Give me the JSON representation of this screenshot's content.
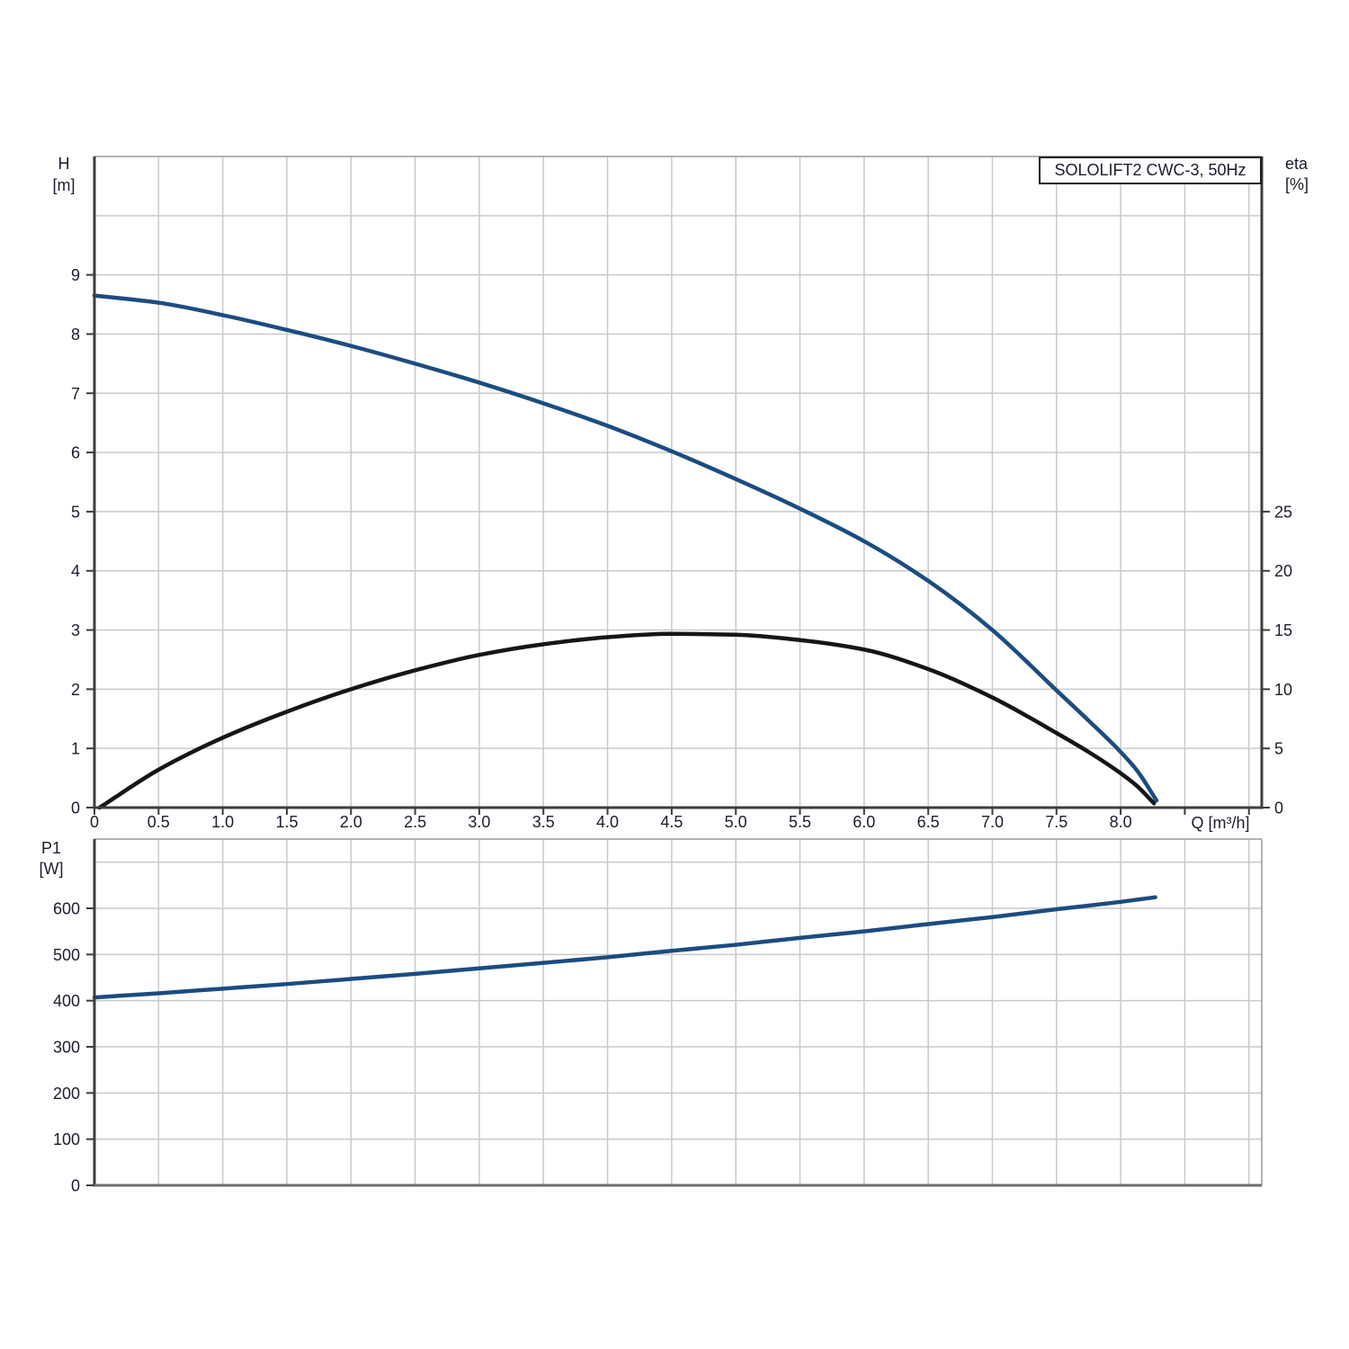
{
  "title_box": {
    "label": "SOLOLIFT2 CWC-3, 50Hz"
  },
  "colors": {
    "curve_blue": "#1c4c80",
    "curve_black": "#161616",
    "grid": "#c9c9c9",
    "frame": "#9a9a9a",
    "axis_dark": "#3d3d3d",
    "axis_medium": "#6e6e6e",
    "text": "#1c1c2e"
  },
  "chart_data": [
    {
      "id": "head-efficiency-chart",
      "type": "line",
      "title": "SOLOLIFT2 CWC-3, 50Hz",
      "xlabel": "Q [m³/h]",
      "x_range": [
        0,
        9.1
      ],
      "grid_x_step": 0.5,
      "grid_x_last": 9.0,
      "x_tick_labels": [
        "0",
        "0.5",
        "1.0",
        "1.5",
        "2.0",
        "2.5",
        "3.0",
        "3.5",
        "4.0",
        "4.5",
        "5.0",
        "5.5",
        "6.0",
        "6.5",
        "7.0",
        "7.5",
        "8.0"
      ],
      "x_tick_values": [
        0,
        0.5,
        1,
        1.5,
        2,
        2.5,
        3,
        3.5,
        4,
        4.5,
        5,
        5.5,
        6,
        6.5,
        7,
        7.5,
        8
      ],
      "left_axis": {
        "label": "H",
        "unit": "[m]",
        "range": [
          0,
          11
        ],
        "grid_step": 1,
        "tick_values": [
          0,
          1,
          2,
          3,
          4,
          5,
          6,
          7,
          8,
          9
        ],
        "tick_labels": [
          "0",
          "1",
          "2",
          "3",
          "4",
          "5",
          "6",
          "7",
          "8",
          "9"
        ]
      },
      "right_axis": {
        "label": "eta",
        "unit": "[%]",
        "range": [
          0,
          55
        ],
        "tick_values": [
          0,
          5,
          10,
          15,
          20,
          25
        ],
        "tick_labels": [
          "0",
          "5",
          "10",
          "15",
          "20",
          "25"
        ]
      },
      "series": [
        {
          "name": "H",
          "axis": "left",
          "color_key": "curve_blue",
          "x": [
            0,
            0.5,
            1,
            1.5,
            2,
            2.5,
            3,
            3.5,
            4,
            4.5,
            5,
            5.5,
            6,
            6.5,
            7,
            7.5,
            7.75,
            8,
            8.13,
            8.28
          ],
          "y": [
            8.65,
            8.53,
            8.32,
            8.07,
            7.8,
            7.5,
            7.18,
            6.83,
            6.45,
            6.02,
            5.55,
            5.05,
            4.5,
            3.83,
            3.0,
            1.98,
            1.47,
            0.94,
            0.62,
            0.12
          ]
        },
        {
          "name": "eta",
          "axis": "right",
          "color_key": "curve_black",
          "x": [
            0.04,
            0.5,
            1,
            1.5,
            2,
            2.5,
            3,
            3.5,
            4,
            4.5,
            5,
            5.5,
            6,
            6.5,
            7,
            7.5,
            7.75,
            8,
            8.13,
            8.26
          ],
          "y": [
            0,
            3.2,
            5.9,
            8.1,
            10.0,
            11.6,
            12.9,
            13.8,
            14.4,
            14.68,
            14.6,
            14.15,
            13.35,
            11.7,
            9.3,
            6.3,
            4.7,
            2.9,
            1.8,
            0.36
          ]
        }
      ]
    },
    {
      "id": "power-chart",
      "type": "line",
      "xlabel": "",
      "x_range": [
        0,
        9.1
      ],
      "grid_x_step": 0.5,
      "grid_x_last": 9.0,
      "left_axis": {
        "label": "P1",
        "unit": "[W]",
        "range": [
          0,
          750
        ],
        "grid_step": 100,
        "tick_values": [
          0,
          100,
          200,
          300,
          400,
          500,
          600
        ],
        "tick_labels": [
          "0",
          "100",
          "200",
          "300",
          "400",
          "500",
          "600"
        ]
      },
      "series": [
        {
          "name": "P1",
          "axis": "left",
          "color_key": "curve_blue",
          "x": [
            0,
            0.5,
            1,
            1.5,
            2,
            2.5,
            3,
            3.5,
            4,
            4.5,
            5,
            5.5,
            6,
            6.5,
            7,
            7.5,
            8,
            8.27
          ],
          "y": [
            407,
            416,
            426,
            436,
            447,
            458,
            470,
            482,
            494,
            508,
            521,
            536,
            550,
            566,
            581,
            598,
            614,
            624
          ]
        }
      ]
    }
  ]
}
